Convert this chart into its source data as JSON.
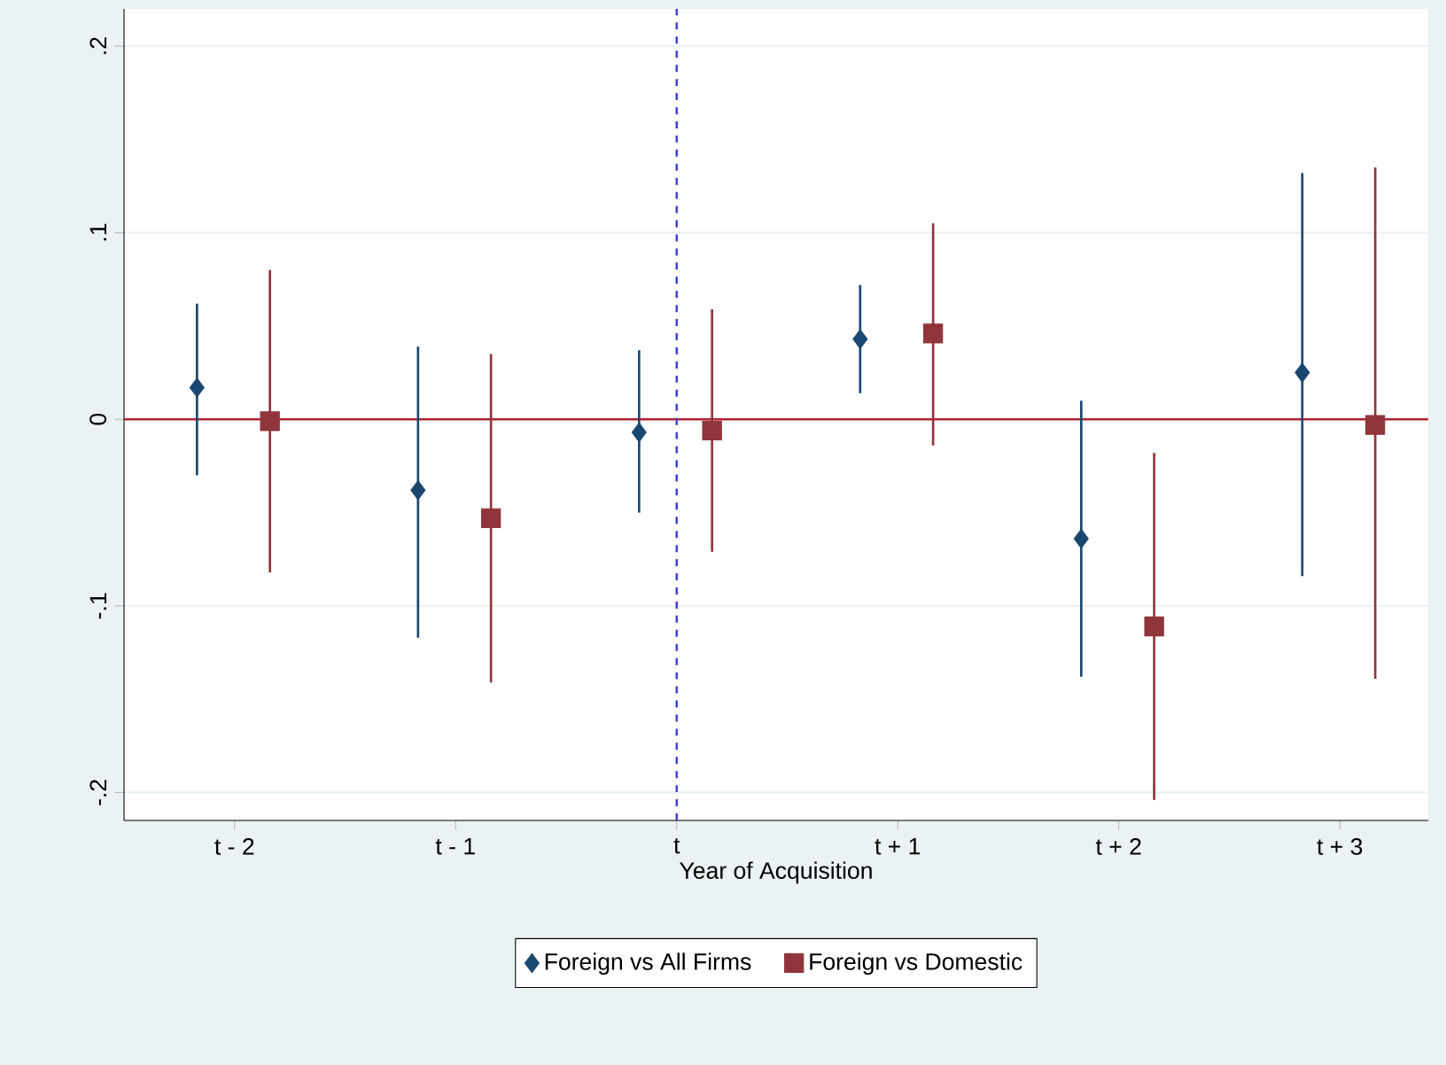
{
  "chart_data": {
    "type": "scatter",
    "xlabel": "Year of Acquisition",
    "xlim": [
      -2.5,
      3.4
    ],
    "xticks": [
      {
        "value": -2,
        "label": "t - 2"
      },
      {
        "value": -1,
        "label": "t - 1"
      },
      {
        "value": 0,
        "label": "t"
      },
      {
        "value": 1,
        "label": "t + 1"
      },
      {
        "value": 2,
        "label": "t + 2"
      },
      {
        "value": 3,
        "label": "t + 3"
      }
    ],
    "ylim": [
      -0.215,
      0.22
    ],
    "yticks": [
      {
        "value": -0.2,
        "label": "-.2"
      },
      {
        "value": -0.1,
        "label": "-.1"
      },
      {
        "value": 0,
        "label": "0"
      },
      {
        "value": 0.1,
        "label": ".1"
      },
      {
        "value": 0.2,
        "label": ".2"
      }
    ],
    "grid": "y",
    "legend": "bottom",
    "ref_lines": [
      {
        "axis": "y",
        "value": 0,
        "color": "#b22234",
        "line_style": "solid"
      },
      {
        "axis": "x",
        "value": 0,
        "color": "#3b3bd6",
        "line_style": "dashed"
      }
    ],
    "series": [
      {
        "name": "Foreign vs All Firms",
        "color": "#1a476f",
        "marker": "diamond",
        "x": [
          -2.17,
          -1.17,
          -0.17,
          0.83,
          1.83,
          2.83
        ],
        "values": [
          0.017,
          -0.038,
          -0.007,
          0.043,
          -0.064,
          0.025
        ],
        "errors": [
          [
            -0.03,
            0.062
          ],
          [
            -0.117,
            0.039
          ],
          [
            -0.05,
            0.037
          ],
          [
            0.014,
            0.072
          ],
          [
            -0.138,
            0.01
          ],
          [
            -0.084,
            0.132
          ]
        ]
      },
      {
        "name": "Foreign vs Domestic",
        "color": "#90353b",
        "marker": "square",
        "x": [
          -1.84,
          -0.84,
          0.16,
          1.16,
          2.16,
          3.16
        ],
        "values": [
          -0.001,
          -0.053,
          -0.006,
          0.046,
          -0.111,
          -0.003
        ],
        "errors": [
          [
            -0.082,
            0.08
          ],
          [
            -0.141,
            0.035
          ],
          [
            -0.071,
            0.059
          ],
          [
            -0.014,
            0.105
          ],
          [
            -0.204,
            -0.018
          ],
          [
            -0.139,
            0.135
          ]
        ]
      }
    ]
  }
}
